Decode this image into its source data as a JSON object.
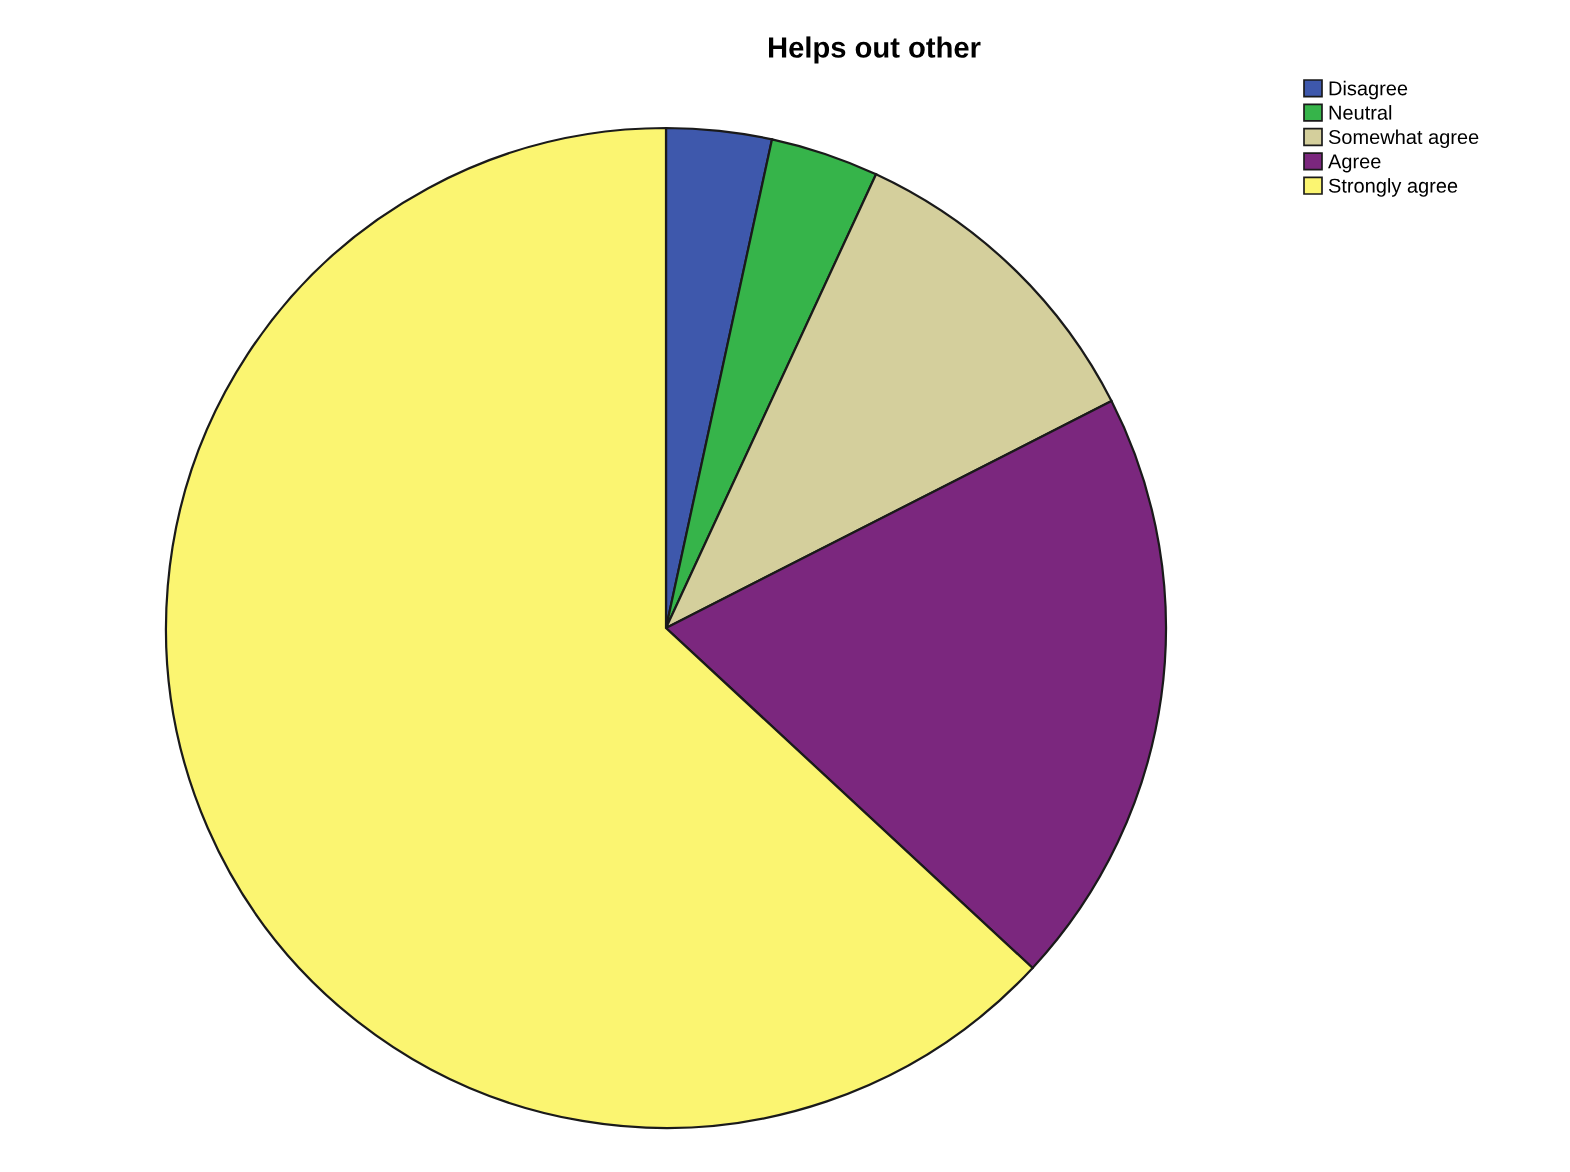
{
  "chart_data": {
    "type": "pie",
    "title": "Helps out other",
    "categories": [
      "Disagree",
      "Neutral",
      "Somewhat agree",
      "Agree",
      "Strongly agree"
    ],
    "values": [
      3.4,
      3.5,
      10.6,
      19.4,
      63.1
    ],
    "colors": [
      "#3e58ac",
      "#36b44a",
      "#d4cf9c",
      "#7b277e",
      "#fbf571"
    ],
    "legend": "top right"
  }
}
